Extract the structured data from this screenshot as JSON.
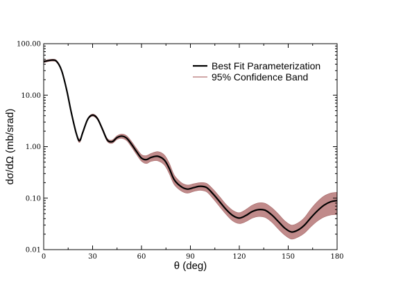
{
  "chart_data": {
    "type": "line",
    "xlabel": "θ (deg)",
    "ylabel": "dσ/dΩ (mb/srad)",
    "xlim": [
      0,
      180
    ],
    "ylim": [
      0.01,
      100
    ],
    "yscale": "log",
    "grid": false,
    "legend_placement": "top-right",
    "x_ticks": [
      0,
      30,
      60,
      90,
      120,
      150,
      180
    ],
    "x_tick_labels": [
      "0",
      "30",
      "60",
      "90",
      "120",
      "150",
      "180"
    ],
    "y_ticks": [
      0.01,
      0.1,
      1,
      10,
      100
    ],
    "y_tick_labels": [
      "0.01",
      "0.10",
      "1.00",
      "10.00",
      "100.00"
    ],
    "colors": {
      "best_fit": "#000000",
      "band": "#c08a8a",
      "band_edge": "#a86a6a"
    },
    "series": [
      {
        "name": "Best Fit Parameterization",
        "style": "line",
        "x": [
          0,
          5,
          8,
          11,
          14,
          17,
          20,
          22,
          24,
          27,
          30,
          33,
          36,
          39,
          42,
          45,
          48,
          51,
          54,
          57,
          60,
          63,
          66,
          70,
          74,
          77,
          80,
          84,
          88,
          92,
          96,
          100,
          104,
          108,
          112,
          116,
          120,
          124,
          128,
          132,
          136,
          140,
          144,
          148,
          152,
          156,
          160,
          164,
          168,
          172,
          176,
          180
        ],
        "y": [
          45,
          48,
          45,
          30,
          13,
          4.5,
          1.8,
          1.3,
          1.9,
          3.4,
          4.1,
          3.5,
          2.2,
          1.35,
          1.25,
          1.5,
          1.6,
          1.45,
          1.1,
          0.8,
          0.6,
          0.56,
          0.62,
          0.65,
          0.55,
          0.38,
          0.23,
          0.17,
          0.15,
          0.16,
          0.17,
          0.16,
          0.12,
          0.085,
          0.06,
          0.046,
          0.041,
          0.046,
          0.055,
          0.06,
          0.058,
          0.047,
          0.035,
          0.026,
          0.022,
          0.024,
          0.03,
          0.042,
          0.057,
          0.073,
          0.085,
          0.09
        ]
      },
      {
        "name": "95% Confidence Band",
        "style": "band",
        "x": [
          0,
          5,
          8,
          11,
          14,
          17,
          20,
          22,
          24,
          27,
          30,
          33,
          36,
          39,
          42,
          45,
          48,
          51,
          54,
          57,
          60,
          63,
          66,
          70,
          74,
          77,
          80,
          84,
          88,
          92,
          96,
          100,
          104,
          108,
          112,
          116,
          120,
          124,
          128,
          132,
          136,
          140,
          144,
          148,
          152,
          156,
          160,
          164,
          168,
          172,
          176,
          180
        ],
        "lower": [
          43,
          46,
          43,
          28.5,
          12.3,
          4.25,
          1.7,
          1.2,
          1.8,
          3.25,
          3.9,
          3.3,
          2.05,
          1.26,
          1.16,
          1.38,
          1.45,
          1.3,
          0.97,
          0.7,
          0.52,
          0.47,
          0.52,
          0.53,
          0.44,
          0.3,
          0.185,
          0.14,
          0.125,
          0.135,
          0.142,
          0.132,
          0.097,
          0.068,
          0.048,
          0.036,
          0.032,
          0.035,
          0.041,
          0.044,
          0.042,
          0.034,
          0.025,
          0.019,
          0.016,
          0.0175,
          0.021,
          0.028,
          0.036,
          0.043,
          0.047,
          0.048
        ],
        "upper": [
          47,
          50,
          47,
          31.5,
          13.7,
          4.75,
          1.9,
          1.4,
          2.0,
          3.55,
          4.3,
          3.7,
          2.35,
          1.45,
          1.35,
          1.63,
          1.76,
          1.62,
          1.25,
          0.92,
          0.7,
          0.67,
          0.74,
          0.8,
          0.69,
          0.48,
          0.285,
          0.205,
          0.18,
          0.19,
          0.2,
          0.193,
          0.148,
          0.106,
          0.075,
          0.058,
          0.052,
          0.06,
          0.073,
          0.081,
          0.079,
          0.065,
          0.049,
          0.036,
          0.03,
          0.033,
          0.042,
          0.062,
          0.086,
          0.11,
          0.125,
          0.13
        ]
      }
    ]
  }
}
